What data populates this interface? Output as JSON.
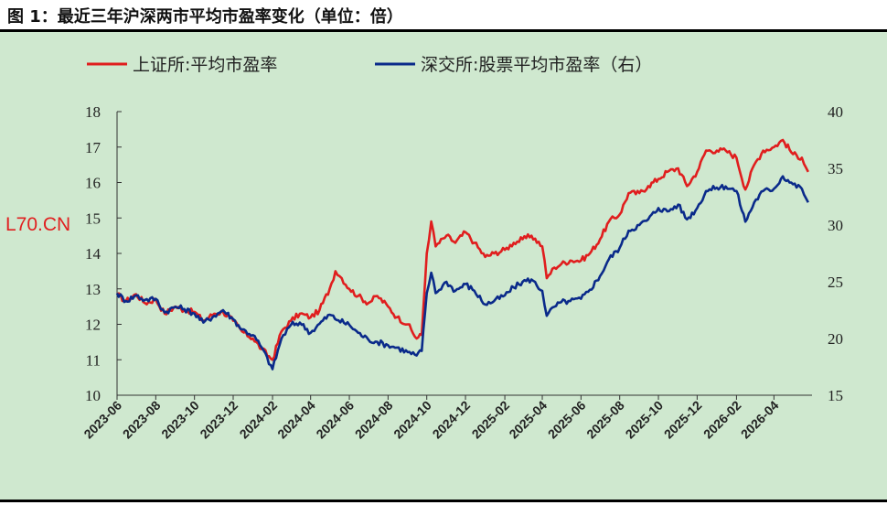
{
  "title": "图 1：最近三年沪深两市平均市盈率变化（单位：倍）",
  "watermark": "L70.CN",
  "colors": {
    "series_sh": "#e01e1e",
    "series_sz": "#0a2a8a",
    "background": "#cfe8cf"
  },
  "chart_data": {
    "type": "line",
    "title": "",
    "legend_position": "top",
    "x_ticks": [
      "2023-06",
      "2023-08",
      "2023-10",
      "2023-12",
      "2024-02",
      "2024-04",
      "2024-06",
      "2024-08",
      "2024-10",
      "2024-12",
      "2025-02",
      "2025-04",
      "2025-06",
      "2025-08",
      "2025-10",
      "2025-12",
      "2026-02",
      "2026-04"
    ],
    "y_left": {
      "min": 10,
      "max": 18,
      "ticks": [
        10,
        11,
        12,
        13,
        14,
        15,
        16,
        17,
        18
      ]
    },
    "y_right": {
      "min": 15,
      "max": 40,
      "ticks": [
        15,
        20,
        25,
        30,
        35,
        40
      ]
    },
    "series": [
      {
        "name": "上证所:平均市盈率",
        "axis": "left",
        "points": [
          [
            "2023-06-01",
            12.85
          ],
          [
            "2023-06-15",
            12.65
          ],
          [
            "2023-07-01",
            12.85
          ],
          [
            "2023-07-15",
            12.6
          ],
          [
            "2023-08-01",
            12.7
          ],
          [
            "2023-08-15",
            12.3
          ],
          [
            "2023-09-01",
            12.5
          ],
          [
            "2023-09-15",
            12.4
          ],
          [
            "2023-10-01",
            12.35
          ],
          [
            "2023-10-15",
            12.1
          ],
          [
            "2023-11-01",
            12.3
          ],
          [
            "2023-11-15",
            12.35
          ],
          [
            "2023-12-01",
            12.1
          ],
          [
            "2023-12-15",
            11.8
          ],
          [
            "2024-01-01",
            11.6
          ],
          [
            "2024-01-15",
            11.3
          ],
          [
            "2024-02-01",
            11.0
          ],
          [
            "2024-02-15",
            11.8
          ],
          [
            "2024-03-01",
            12.1
          ],
          [
            "2024-03-15",
            12.3
          ],
          [
            "2024-04-01",
            12.2
          ],
          [
            "2024-04-15",
            12.4
          ],
          [
            "2024-05-01",
            13.0
          ],
          [
            "2024-05-10",
            13.5
          ],
          [
            "2024-05-20",
            13.3
          ],
          [
            "2024-06-01",
            13.0
          ],
          [
            "2024-06-15",
            12.8
          ],
          [
            "2024-07-01",
            12.6
          ],
          [
            "2024-07-15",
            12.8
          ],
          [
            "2024-08-01",
            12.5
          ],
          [
            "2024-08-15",
            12.2
          ],
          [
            "2024-09-01",
            12.0
          ],
          [
            "2024-09-15",
            11.6
          ],
          [
            "2024-09-23",
            11.7
          ],
          [
            "2024-10-01",
            14.0
          ],
          [
            "2024-10-08",
            14.9
          ],
          [
            "2024-10-15",
            14.2
          ],
          [
            "2024-11-01",
            14.5
          ],
          [
            "2024-11-15",
            14.3
          ],
          [
            "2024-12-01",
            14.6
          ],
          [
            "2024-12-15",
            14.3
          ],
          [
            "2025-01-01",
            13.9
          ],
          [
            "2025-01-15",
            14.0
          ],
          [
            "2025-02-01",
            14.1
          ],
          [
            "2025-02-15",
            14.3
          ],
          [
            "2025-03-01",
            14.4
          ],
          [
            "2025-03-15",
            14.5
          ],
          [
            "2025-04-01",
            14.2
          ],
          [
            "2025-04-08",
            13.3
          ],
          [
            "2025-04-20",
            13.6
          ],
          [
            "2025-05-01",
            13.7
          ],
          [
            "2025-05-15",
            13.8
          ],
          [
            "2025-06-01",
            13.8
          ],
          [
            "2025-06-15",
            14.0
          ],
          [
            "2025-07-01",
            14.4
          ],
          [
            "2025-07-15",
            14.9
          ],
          [
            "2025-08-01",
            15.1
          ],
          [
            "2025-08-15",
            15.7
          ],
          [
            "2025-09-01",
            15.7
          ],
          [
            "2025-09-15",
            15.9
          ],
          [
            "2025-10-01",
            16.1
          ],
          [
            "2025-10-15",
            16.3
          ],
          [
            "2025-11-01",
            16.4
          ],
          [
            "2025-11-15",
            15.9
          ],
          [
            "2025-12-01",
            16.3
          ],
          [
            "2025-12-15",
            16.9
          ],
          [
            "2026-01-01",
            16.9
          ],
          [
            "2026-01-15",
            16.9
          ],
          [
            "2026-02-01",
            16.7
          ],
          [
            "2026-02-15",
            15.8
          ],
          [
            "2026-03-01",
            16.5
          ],
          [
            "2026-03-15",
            16.9
          ],
          [
            "2026-04-01",
            17.0
          ],
          [
            "2026-04-15",
            17.2
          ],
          [
            "2026-05-01",
            16.8
          ],
          [
            "2026-05-15",
            16.7
          ],
          [
            "2026-05-25",
            16.3
          ]
        ]
      },
      {
        "name": "深交所:股票平均市盈率（右）",
        "axis": "right",
        "points": [
          [
            "2023-06-01",
            24.0
          ],
          [
            "2023-06-15",
            23.3
          ],
          [
            "2023-07-01",
            23.8
          ],
          [
            "2023-07-15",
            23.4
          ],
          [
            "2023-08-01",
            23.5
          ],
          [
            "2023-08-15",
            22.3
          ],
          [
            "2023-09-01",
            22.8
          ],
          [
            "2023-09-15",
            22.6
          ],
          [
            "2023-10-01",
            22.2
          ],
          [
            "2023-10-15",
            21.4
          ],
          [
            "2023-11-01",
            22.0
          ],
          [
            "2023-11-15",
            22.5
          ],
          [
            "2023-12-01",
            21.7
          ],
          [
            "2023-12-15",
            20.8
          ],
          [
            "2024-01-01",
            20.3
          ],
          [
            "2024-01-15",
            19.2
          ],
          [
            "2024-02-01",
            17.3
          ],
          [
            "2024-02-15",
            20.0
          ],
          [
            "2024-03-01",
            21.2
          ],
          [
            "2024-03-15",
            21.4
          ],
          [
            "2024-04-01",
            20.5
          ],
          [
            "2024-04-15",
            21.3
          ],
          [
            "2024-05-01",
            22.1
          ],
          [
            "2024-05-15",
            21.6
          ],
          [
            "2024-06-01",
            21.2
          ],
          [
            "2024-06-15",
            20.5
          ],
          [
            "2024-07-01",
            19.9
          ],
          [
            "2024-07-15",
            19.7
          ],
          [
            "2024-08-01",
            19.4
          ],
          [
            "2024-08-15",
            19.2
          ],
          [
            "2024-09-01",
            18.8
          ],
          [
            "2024-09-15",
            18.5
          ],
          [
            "2024-09-23",
            18.9
          ],
          [
            "2024-10-01",
            24.0
          ],
          [
            "2024-10-08",
            25.8
          ],
          [
            "2024-10-15",
            24.0
          ],
          [
            "2024-11-01",
            25.0
          ],
          [
            "2024-11-15",
            24.2
          ],
          [
            "2024-12-01",
            24.8
          ],
          [
            "2024-12-15",
            24.2
          ],
          [
            "2025-01-01",
            23.0
          ],
          [
            "2025-01-15",
            23.3
          ],
          [
            "2025-02-01",
            23.8
          ],
          [
            "2025-02-15",
            24.5
          ],
          [
            "2025-03-01",
            25.0
          ],
          [
            "2025-03-15",
            25.2
          ],
          [
            "2025-04-01",
            24.2
          ],
          [
            "2025-04-08",
            22.0
          ],
          [
            "2025-04-20",
            22.8
          ],
          [
            "2025-05-01",
            23.2
          ],
          [
            "2025-05-15",
            23.3
          ],
          [
            "2025-06-01",
            23.5
          ],
          [
            "2025-06-15",
            24.3
          ],
          [
            "2025-07-01",
            25.5
          ],
          [
            "2025-07-15",
            27.0
          ],
          [
            "2025-08-01",
            28.0
          ],
          [
            "2025-08-15",
            29.5
          ],
          [
            "2025-09-01",
            30.0
          ],
          [
            "2025-09-15",
            30.5
          ],
          [
            "2025-10-01",
            31.5
          ],
          [
            "2025-10-15",
            31.2
          ],
          [
            "2025-11-01",
            31.8
          ],
          [
            "2025-11-15",
            30.5
          ],
          [
            "2025-12-01",
            31.5
          ],
          [
            "2025-12-15",
            33.0
          ],
          [
            "2026-01-01",
            33.3
          ],
          [
            "2026-01-15",
            33.4
          ],
          [
            "2026-02-01",
            33.0
          ],
          [
            "2026-02-15",
            30.3
          ],
          [
            "2026-03-01",
            32.0
          ],
          [
            "2026-03-15",
            33.0
          ],
          [
            "2026-04-01",
            33.2
          ],
          [
            "2026-04-15",
            34.3
          ],
          [
            "2026-05-01",
            33.6
          ],
          [
            "2026-05-15",
            33.2
          ],
          [
            "2026-05-25",
            32.0
          ]
        ]
      }
    ]
  }
}
